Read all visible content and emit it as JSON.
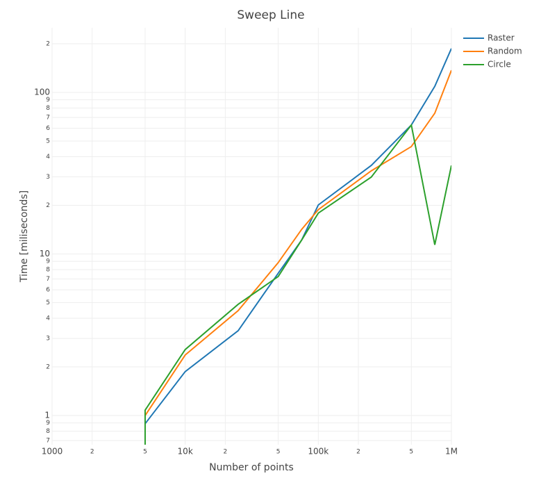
{
  "chart_data": {
    "type": "line",
    "title": "Sweep Line",
    "x_label": "Number of points",
    "y_label": "Time [miliseconds]",
    "log_x": true,
    "log_y": true,
    "grid": true,
    "legend": "top-right",
    "xlim": [
      1000,
      1000000
    ],
    "xticks": [
      1000,
      {
        "value": 2000,
        "label": "2"
      },
      {
        "value": 5000,
        "label": "5"
      },
      {
        "value": 10000,
        "label": "10k"
      },
      {
        "value": 20000,
        "label": "2"
      },
      {
        "value": 50000,
        "label": "5"
      },
      {
        "value": 100000,
        "label": "100k"
      },
      {
        "value": 200000,
        "label": "2"
      },
      {
        "value": 500000,
        "label": "5"
      },
      {
        "value": 1000000,
        "label": "1M"
      }
    ],
    "ylim": [
      0.66,
      251
    ],
    "yticks": [
      {
        "value": 0.7,
        "label": "7"
      },
      {
        "value": 0.8,
        "label": "8"
      },
      {
        "value": 0.9,
        "label": "9"
      },
      1,
      2,
      3,
      4,
      5,
      6,
      7,
      8,
      9,
      10,
      {
        "value": 20,
        "label": "2"
      },
      {
        "value": 30,
        "label": "3"
      },
      {
        "value": 40,
        "label": "4"
      },
      {
        "value": 50,
        "label": "5"
      },
      {
        "value": 60,
        "label": "6"
      },
      {
        "value": 70,
        "label": "7"
      },
      {
        "value": 80,
        "label": "8"
      },
      {
        "value": 90,
        "label": "9"
      },
      100,
      {
        "value": 200,
        "label": "2"
      }
    ],
    "series": [
      {
        "name": "Raster",
        "color": "#1f77b4",
        "x": [
          5000,
          10000,
          25000,
          50000,
          75000,
          100000,
          250000,
          500000,
          750000,
          1000000
        ],
        "values": [
          0.89,
          1.87,
          3.35,
          7.6,
          12.2,
          20.1,
          35.3,
          62.8,
          109,
          187
        ]
      },
      {
        "name": "Random",
        "color": "#ff7f0e",
        "x": [
          5000,
          10000,
          25000,
          50000,
          75000,
          100000,
          250000,
          500000,
          750000,
          1000000
        ],
        "values": [
          1.0,
          2.37,
          4.46,
          8.84,
          14.2,
          18.8,
          32.7,
          46.2,
          74.3,
          137
        ]
      },
      {
        "name": "Circle",
        "color": "#2ca02c",
        "x": [
          5000,
          5000,
          10000,
          25000,
          50000,
          75000,
          100000,
          250000,
          500000,
          750000,
          1000000
        ],
        "values": [
          0.5,
          1.08,
          2.56,
          4.88,
          7.25,
          12.2,
          17.9,
          29.9,
          62.8,
          11.4,
          35.3
        ]
      }
    ]
  }
}
